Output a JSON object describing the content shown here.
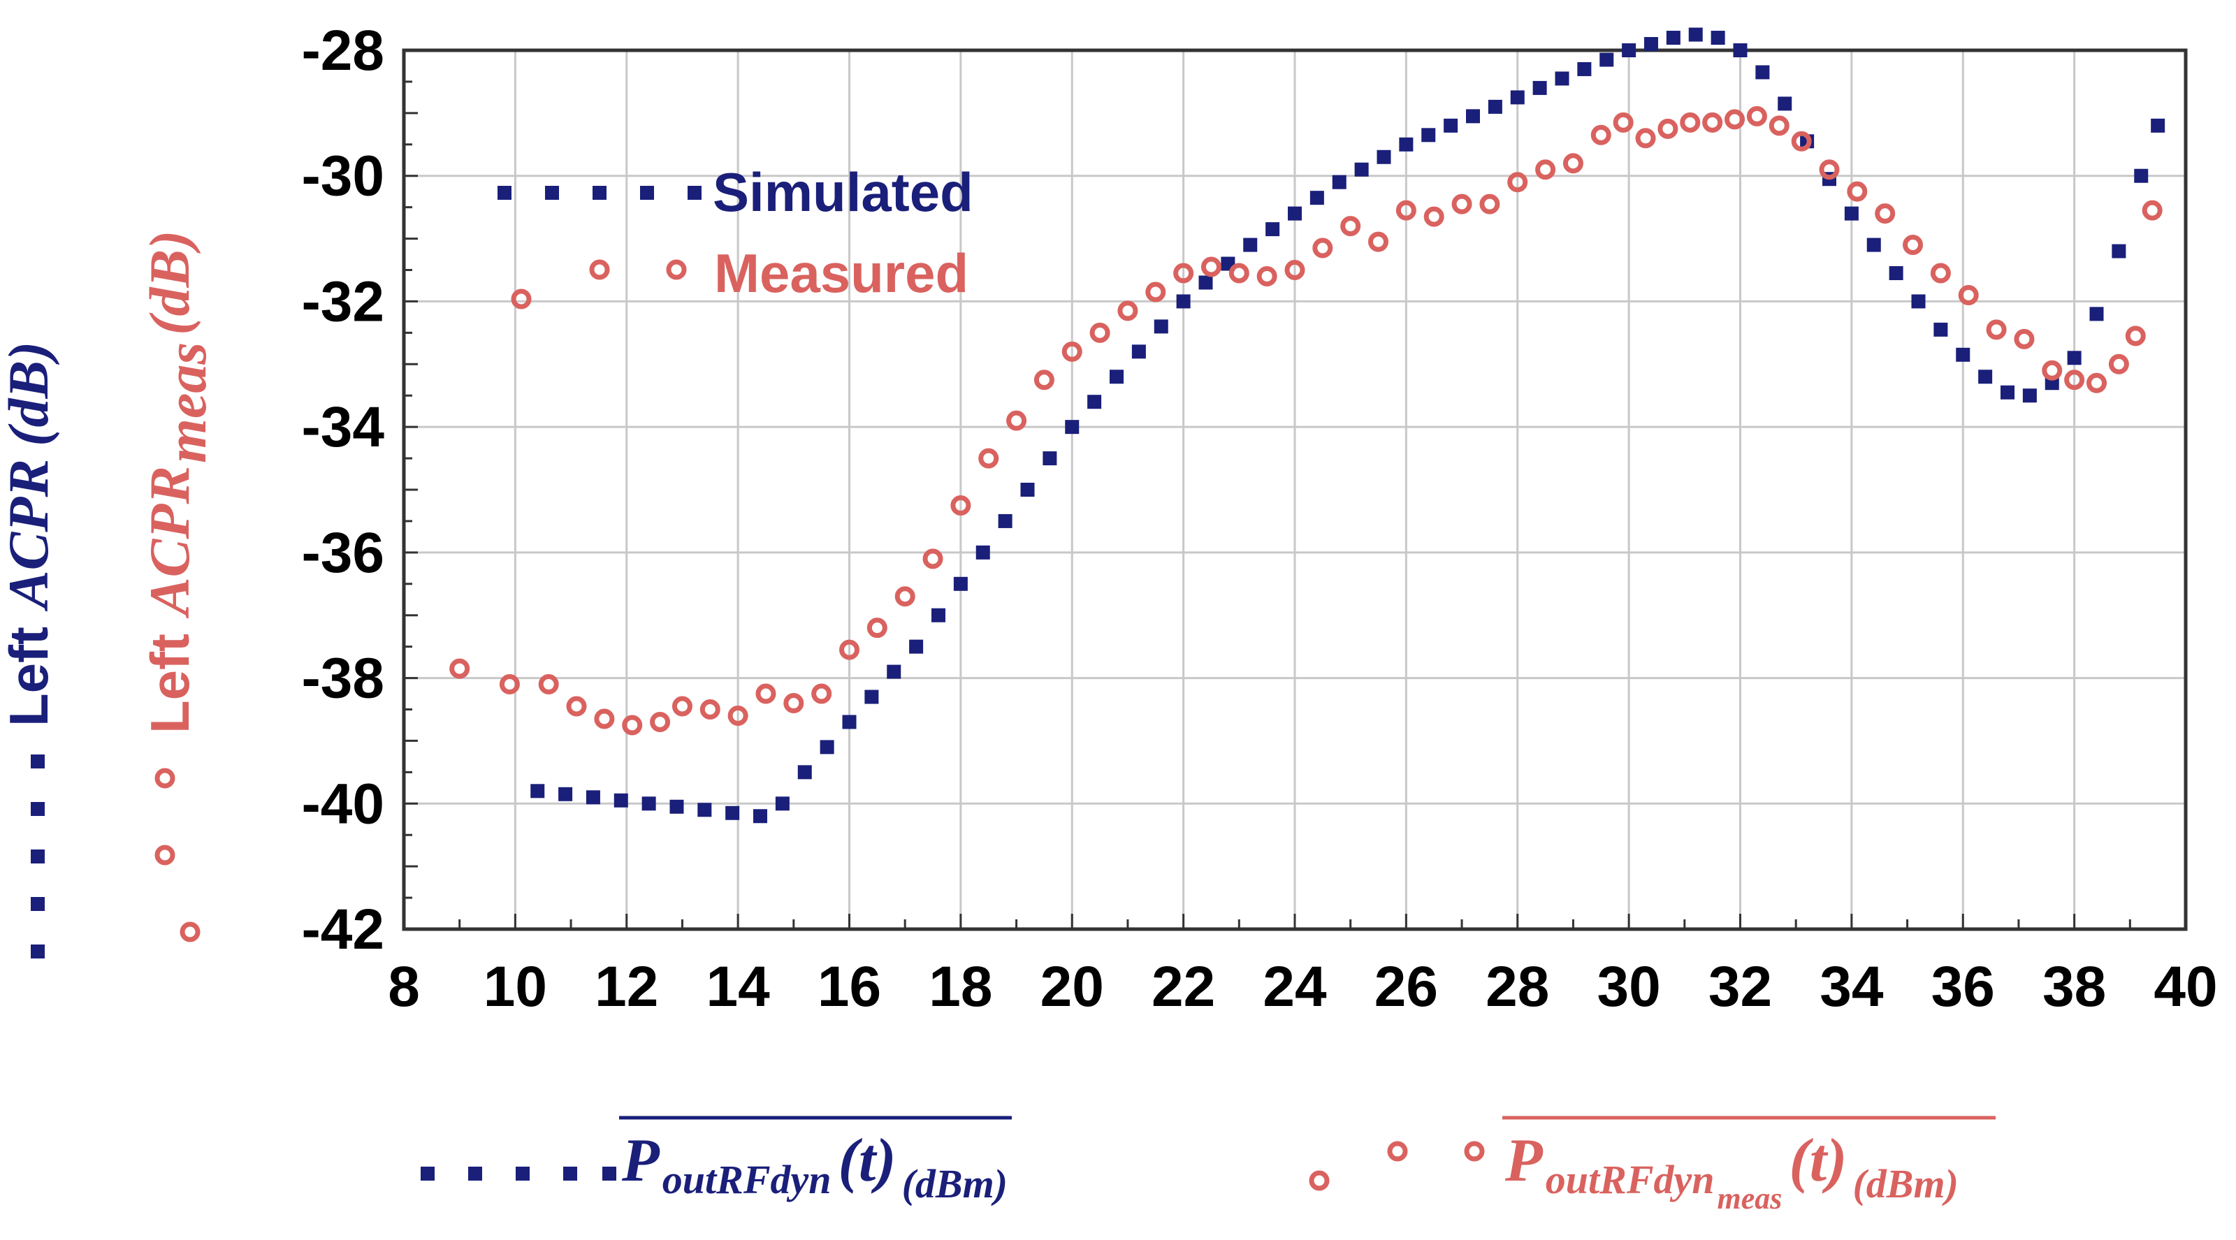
{
  "chart_data": {
    "type": "scatter",
    "xlim": [
      8,
      40
    ],
    "ylim": [
      -42,
      -28
    ],
    "xticks": [
      "8",
      "10",
      "12",
      "14",
      "16",
      "18",
      "20",
      "22",
      "24",
      "26",
      "28",
      "30",
      "32",
      "34",
      "36",
      "38",
      "40"
    ],
    "yticks": [
      "-28",
      "-30",
      "-32",
      "-34",
      "-36",
      "-38",
      "-40",
      "-42"
    ],
    "grid": true,
    "legend": {
      "placement": "top-left",
      "entries": [
        "Simulated",
        "Measured"
      ]
    },
    "ylabel": {
      "prefix": "Left",
      "acpr": "ACPR",
      "meas_sub": "meas",
      "unit": "(dB)"
    },
    "xlabel": {
      "p": "P",
      "sub_sim": "outRFdyn",
      "sub_meas_main": "outRFdyn",
      "sub_meas_sub": "meas",
      "t": "(t)",
      "unit": "(dBm)"
    },
    "colors": {
      "simulated": "#1a1f7a",
      "measured": "#d9625f"
    },
    "series": [
      {
        "name": "Simulated",
        "marker": "square",
        "x": [
          10.4,
          10.9,
          11.4,
          11.9,
          12.4,
          12.9,
          13.4,
          13.9,
          14.4,
          14.8,
          15.2,
          15.6,
          16.0,
          16.4,
          16.8,
          17.2,
          17.6,
          18.0,
          18.4,
          18.8,
          19.2,
          19.6,
          20.0,
          20.4,
          20.8,
          21.2,
          21.6,
          22.0,
          22.4,
          22.8,
          23.2,
          23.6,
          24.0,
          24.4,
          24.8,
          25.2,
          25.6,
          26.0,
          26.4,
          26.8,
          27.2,
          27.6,
          28.0,
          28.4,
          28.8,
          29.2,
          29.6,
          30.0,
          30.4,
          30.8,
          31.2,
          31.6,
          32.0,
          32.4,
          32.8,
          33.2,
          33.6,
          34.0,
          34.4,
          34.8,
          35.2,
          35.6,
          36.0,
          36.4,
          36.8,
          37.2,
          37.6,
          38.0,
          38.4,
          38.8,
          39.2,
          39.5
        ],
        "y": [
          -39.8,
          -39.85,
          -39.9,
          -39.95,
          -40.0,
          -40.05,
          -40.1,
          -40.15,
          -40.2,
          -40.0,
          -39.5,
          -39.1,
          -38.7,
          -38.3,
          -37.9,
          -37.5,
          -37.0,
          -36.5,
          -36.0,
          -35.5,
          -35.0,
          -34.5,
          -34.0,
          -33.6,
          -33.2,
          -32.8,
          -32.4,
          -32.0,
          -31.7,
          -31.4,
          -31.1,
          -30.85,
          -30.6,
          -30.35,
          -30.1,
          -29.9,
          -29.7,
          -29.5,
          -29.35,
          -29.2,
          -29.05,
          -28.9,
          -28.75,
          -28.6,
          -28.45,
          -28.3,
          -28.15,
          -28.0,
          -27.9,
          -27.8,
          -27.75,
          -27.8,
          -28.0,
          -28.35,
          -28.85,
          -29.45,
          -30.05,
          -30.6,
          -31.1,
          -31.55,
          -32.0,
          -32.45,
          -32.85,
          -33.2,
          -33.45,
          -33.5,
          -33.3,
          -32.9,
          -32.2,
          -31.2,
          -30.0,
          -29.2
        ]
      },
      {
        "name": "Measured",
        "marker": "ring",
        "x": [
          9.0,
          9.9,
          10.6,
          11.1,
          11.6,
          12.1,
          12.6,
          13.0,
          13.5,
          14.0,
          14.5,
          15.0,
          15.5,
          16.0,
          16.5,
          17.0,
          17.5,
          18.0,
          18.5,
          19.0,
          19.5,
          20.0,
          20.5,
          21.0,
          21.5,
          22.0,
          22.5,
          23.0,
          23.5,
          24.0,
          24.5,
          25.0,
          25.5,
          26.0,
          26.5,
          27.0,
          27.5,
          28.0,
          28.5,
          29.0,
          29.5,
          29.9,
          30.3,
          30.7,
          31.1,
          31.5,
          31.9,
          32.3,
          32.7,
          33.1,
          33.6,
          34.1,
          34.6,
          35.1,
          35.6,
          36.1,
          36.6,
          37.1,
          37.6,
          38.0,
          38.4,
          38.8,
          39.1,
          39.4
        ],
        "y": [
          -37.85,
          -38.1,
          -38.1,
          -38.45,
          -38.65,
          -38.75,
          -38.7,
          -38.45,
          -38.5,
          -38.6,
          -38.25,
          -38.4,
          -38.25,
          -37.55,
          -37.2,
          -36.7,
          -36.1,
          -35.25,
          -34.5,
          -33.9,
          -33.25,
          -32.8,
          -32.5,
          -32.15,
          -31.85,
          -31.55,
          -31.45,
          -31.55,
          -31.6,
          -31.5,
          -31.15,
          -30.8,
          -31.05,
          -30.55,
          -30.65,
          -30.45,
          -30.45,
          -30.1,
          -29.9,
          -29.8,
          -29.35,
          -29.15,
          -29.4,
          -29.25,
          -29.15,
          -29.15,
          -29.1,
          -29.05,
          -29.2,
          -29.45,
          -29.9,
          -30.25,
          -30.6,
          -31.1,
          -31.55,
          -31.9,
          -32.45,
          -32.6,
          -33.1,
          -33.25,
          -33.3,
          -33.0,
          -32.55,
          -30.55
        ]
      }
    ]
  }
}
